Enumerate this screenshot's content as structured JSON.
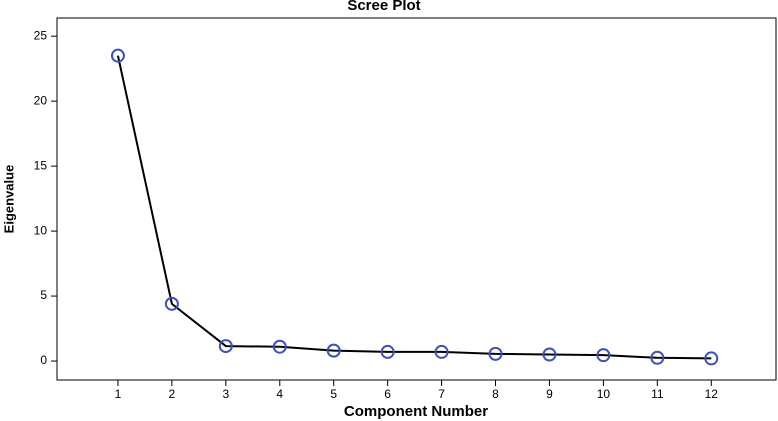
{
  "chart_data": {
    "type": "line",
    "title": "Scree Plot",
    "x_label": "Component Number",
    "y_label": "Eigenvalue",
    "x": [
      1,
      2,
      3,
      4,
      5,
      6,
      7,
      8,
      9,
      10,
      11,
      12
    ],
    "values": [
      23.5,
      4.4,
      1.15,
      1.1,
      0.8,
      0.7,
      0.7,
      0.55,
      0.5,
      0.45,
      0.25,
      0.2
    ],
    "line_color": "#000000",
    "marker_color": "#3f51b5",
    "xlim": [
      -0.13,
      13.2
    ],
    "ylim": [
      -1.46,
      26.4
    ],
    "xticks": [
      1,
      2,
      3,
      4,
      5,
      6,
      7,
      8,
      9,
      10,
      11,
      12
    ],
    "yticks": [
      0,
      5,
      10,
      15,
      20,
      25
    ]
  }
}
